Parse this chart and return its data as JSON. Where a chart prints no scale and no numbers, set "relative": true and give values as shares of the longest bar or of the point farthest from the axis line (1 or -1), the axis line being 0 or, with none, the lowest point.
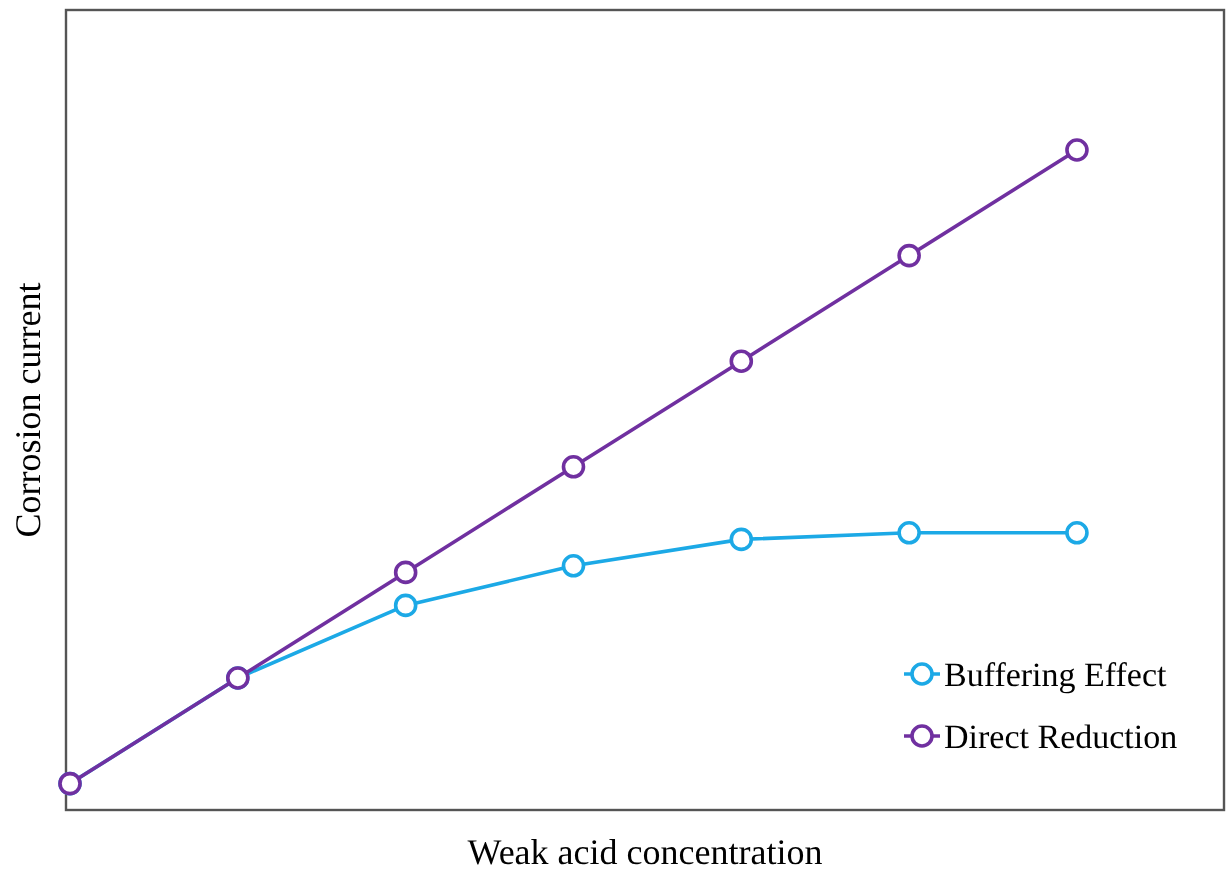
{
  "chart_data": {
    "type": "line",
    "xlabel": "Weak acid concentration",
    "ylabel": "Corrosion current",
    "relative": true,
    "categories": [
      null,
      null,
      null,
      null,
      null,
      null,
      null
    ],
    "marker": "circle",
    "legend": "bottom right",
    "series": [
      {
        "name": "Buffering Effect",
        "color": "#1ca9e6",
        "values": [
          0.04,
          0.2,
          0.31,
          0.37,
          0.41,
          0.42,
          0.42
        ]
      },
      {
        "name": "Direct Reduction",
        "color": "#7030a0",
        "values": [
          0.04,
          0.2,
          0.36,
          0.52,
          0.68,
          0.84,
          1
        ]
      }
    ]
  }
}
